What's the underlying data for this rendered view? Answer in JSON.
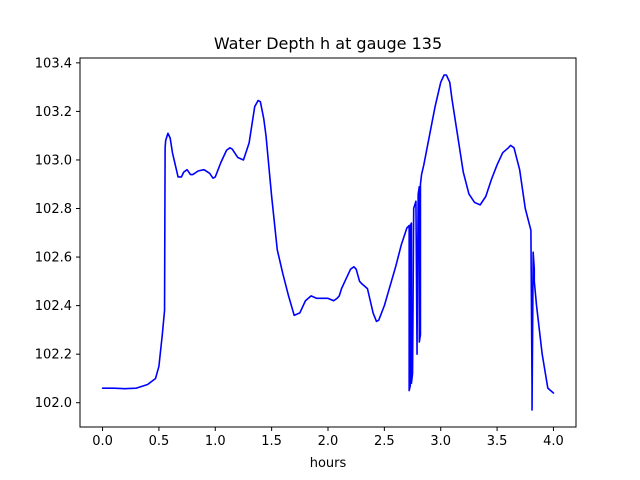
{
  "chart_data": {
    "type": "line",
    "title": "Water Depth h at gauge 135",
    "xlabel": "hours",
    "ylabel": "",
    "xlim": [
      -0.2,
      4.2
    ],
    "ylim": [
      101.9,
      103.42
    ],
    "xticks": [
      0.0,
      0.5,
      1.0,
      1.5,
      2.0,
      2.5,
      3.0,
      3.5,
      4.0
    ],
    "xtick_labels": [
      "0.0",
      "0.5",
      "1.0",
      "1.5",
      "2.0",
      "2.5",
      "3.0",
      "3.5",
      "4.0"
    ],
    "yticks": [
      102.0,
      102.2,
      102.4,
      102.6,
      102.8,
      103.0,
      103.2,
      103.4
    ],
    "ytick_labels": [
      "102.0",
      "102.2",
      "102.4",
      "102.6",
      "102.8",
      "103.0",
      "103.2",
      "103.4"
    ],
    "grid": false,
    "line_color": "#0000ff",
    "series": [
      {
        "x": [
          0.0,
          0.1,
          0.2,
          0.3,
          0.4,
          0.47,
          0.5,
          0.53,
          0.55,
          0.555,
          0.56,
          0.58,
          0.6,
          0.62,
          0.65,
          0.67,
          0.7,
          0.72,
          0.75,
          0.78,
          0.8,
          0.85,
          0.9,
          0.95,
          0.98,
          1.0,
          1.05,
          1.1,
          1.13,
          1.15,
          1.2,
          1.25,
          1.3,
          1.35,
          1.38,
          1.4,
          1.43,
          1.45,
          1.5,
          1.55,
          1.6,
          1.65,
          1.7,
          1.75,
          1.8,
          1.85,
          1.9,
          1.95,
          2.0,
          2.05,
          2.08,
          2.1,
          2.12,
          2.15,
          2.2,
          2.23,
          2.25,
          2.28,
          2.3,
          2.35,
          2.4,
          2.43,
          2.45,
          2.5,
          2.55,
          2.6,
          2.65,
          2.7,
          2.72,
          2.72,
          2.73,
          2.73,
          2.74,
          2.74,
          2.75,
          2.76,
          2.76,
          2.78,
          2.79,
          2.79,
          2.8,
          2.81,
          2.81,
          2.82,
          2.82,
          2.83,
          2.85,
          2.9,
          2.95,
          3.0,
          3.03,
          3.05,
          3.08,
          3.1,
          3.15,
          3.2,
          3.25,
          3.3,
          3.35,
          3.4,
          3.45,
          3.5,
          3.55,
          3.6,
          3.62,
          3.65,
          3.7,
          3.75,
          3.8,
          3.81,
          3.81,
          3.82,
          3.83,
          3.83,
          3.85,
          3.9,
          3.95,
          4.0
        ],
        "y": [
          102.06,
          102.06,
          102.058,
          102.06,
          102.075,
          102.1,
          102.15,
          102.28,
          102.38,
          103.05,
          103.08,
          103.11,
          103.09,
          103.03,
          102.97,
          102.93,
          102.93,
          102.95,
          102.96,
          102.94,
          102.94,
          102.955,
          102.96,
          102.945,
          102.925,
          102.93,
          102.99,
          103.04,
          103.05,
          103.045,
          103.01,
          103.0,
          103.07,
          103.22,
          103.245,
          103.24,
          103.17,
          103.1,
          102.85,
          102.63,
          102.53,
          102.44,
          102.36,
          102.37,
          102.42,
          102.44,
          102.43,
          102.43,
          102.43,
          102.42,
          102.43,
          102.44,
          102.47,
          102.5,
          102.55,
          102.56,
          102.55,
          102.5,
          102.49,
          102.47,
          102.37,
          102.335,
          102.34,
          102.4,
          102.48,
          102.56,
          102.65,
          102.72,
          102.73,
          102.05,
          102.07,
          102.73,
          102.74,
          102.08,
          102.12,
          102.78,
          102.8,
          102.83,
          102.2,
          102.24,
          102.86,
          102.89,
          102.25,
          102.28,
          102.9,
          102.94,
          102.98,
          103.1,
          103.22,
          103.32,
          103.35,
          103.35,
          103.32,
          103.25,
          103.1,
          102.95,
          102.86,
          102.825,
          102.815,
          102.85,
          102.92,
          102.98,
          103.03,
          103.05,
          103.06,
          103.05,
          102.96,
          102.8,
          102.71,
          102.06,
          101.97,
          102.62,
          102.55,
          102.5,
          102.4,
          102.2,
          102.06,
          102.04
        ]
      }
    ]
  }
}
